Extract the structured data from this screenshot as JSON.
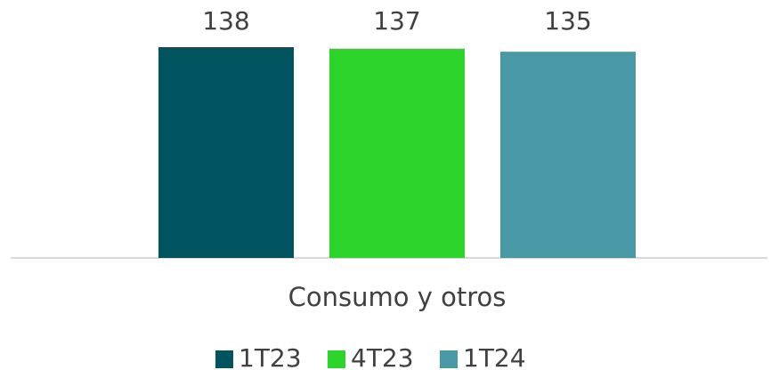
{
  "chart_data": {
    "type": "bar",
    "categories": [
      "Consumo y otros"
    ],
    "series": [
      {
        "name": "1T23",
        "color": "#00535f",
        "values": [
          138
        ]
      },
      {
        "name": "4T23",
        "color": "#2dd42a",
        "values": [
          137
        ]
      },
      {
        "name": "1T24",
        "color": "#4899a5",
        "values": [
          135
        ]
      }
    ],
    "ylim": [
      0,
      138
    ]
  }
}
